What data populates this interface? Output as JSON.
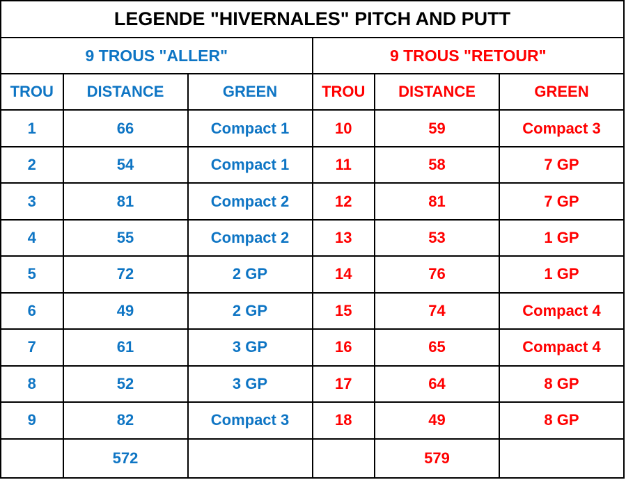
{
  "title": "LEGENDE \"HIVERNALES\" PITCH AND PUTT",
  "colors": {
    "aller_accent": "#0e75c4",
    "retour_accent": "#ff0000",
    "title_color": "#000000",
    "border_color": "#000000",
    "background": "#ffffff"
  },
  "aller": {
    "section_title": "9 TROUS \"ALLER\"",
    "headers": {
      "trou": "TROU",
      "distance": "DISTANCE",
      "green": "GREEN"
    },
    "total": "572"
  },
  "retour": {
    "section_title": "9 TROUS \"RETOUR\"",
    "headers": {
      "trou": "TROU",
      "distance": "DISTANCE",
      "green": "GREEN"
    },
    "total": "579"
  },
  "rows": [
    {
      "aller": {
        "trou": "1",
        "distance": "66",
        "green": "Compact 1"
      },
      "retour": {
        "trou": "10",
        "distance": "59",
        "green": "Compact 3"
      }
    },
    {
      "aller": {
        "trou": "2",
        "distance": "54",
        "green": "Compact 1"
      },
      "retour": {
        "trou": "11",
        "distance": "58",
        "green": "7 GP"
      }
    },
    {
      "aller": {
        "trou": "3",
        "distance": "81",
        "green": "Compact 2"
      },
      "retour": {
        "trou": "12",
        "distance": "81",
        "green": "7 GP"
      }
    },
    {
      "aller": {
        "trou": "4",
        "distance": "55",
        "green": "Compact 2"
      },
      "retour": {
        "trou": "13",
        "distance": "53",
        "green": "1 GP"
      }
    },
    {
      "aller": {
        "trou": "5",
        "distance": "72",
        "green": "2 GP"
      },
      "retour": {
        "trou": "14",
        "distance": "76",
        "green": "1 GP"
      }
    },
    {
      "aller": {
        "trou": "6",
        "distance": "49",
        "green": "2 GP"
      },
      "retour": {
        "trou": "15",
        "distance": "74",
        "green": "Compact 4"
      }
    },
    {
      "aller": {
        "trou": "7",
        "distance": "61",
        "green": "3 GP"
      },
      "retour": {
        "trou": "16",
        "distance": "65",
        "green": "Compact 4"
      }
    },
    {
      "aller": {
        "trou": "8",
        "distance": "52",
        "green": "3 GP"
      },
      "retour": {
        "trou": "17",
        "distance": "64",
        "green": "8 GP"
      }
    },
    {
      "aller": {
        "trou": "9",
        "distance": "82",
        "green": "Compact 3"
      },
      "retour": {
        "trou": "18",
        "distance": "49",
        "green": "8 GP"
      }
    }
  ],
  "chart_data": {
    "type": "table",
    "title": "LEGENDE \"HIVERNALES\" PITCH AND PUTT",
    "sections": [
      {
        "name": "9 TROUS \"ALLER\"",
        "columns": [
          "TROU",
          "DISTANCE",
          "GREEN"
        ],
        "rows": [
          [
            "1",
            66,
            "Compact 1"
          ],
          [
            "2",
            54,
            "Compact 1"
          ],
          [
            "3",
            81,
            "Compact 2"
          ],
          [
            "4",
            55,
            "Compact 2"
          ],
          [
            "5",
            72,
            "2 GP"
          ],
          [
            "6",
            49,
            "2 GP"
          ],
          [
            "7",
            61,
            "3 GP"
          ],
          [
            "8",
            52,
            "3 GP"
          ],
          [
            "9",
            82,
            "Compact 3"
          ]
        ],
        "total_distance": 572
      },
      {
        "name": "9 TROUS \"RETOUR\"",
        "columns": [
          "TROU",
          "DISTANCE",
          "GREEN"
        ],
        "rows": [
          [
            "10",
            59,
            "Compact 3"
          ],
          [
            "11",
            58,
            "7 GP"
          ],
          [
            "12",
            81,
            "7 GP"
          ],
          [
            "13",
            53,
            "1 GP"
          ],
          [
            "14",
            76,
            "1 GP"
          ],
          [
            "15",
            74,
            "Compact 4"
          ],
          [
            "16",
            65,
            "Compact 4"
          ],
          [
            "17",
            64,
            "8 GP"
          ],
          [
            "18",
            49,
            "8 GP"
          ]
        ],
        "total_distance": 579
      }
    ]
  }
}
